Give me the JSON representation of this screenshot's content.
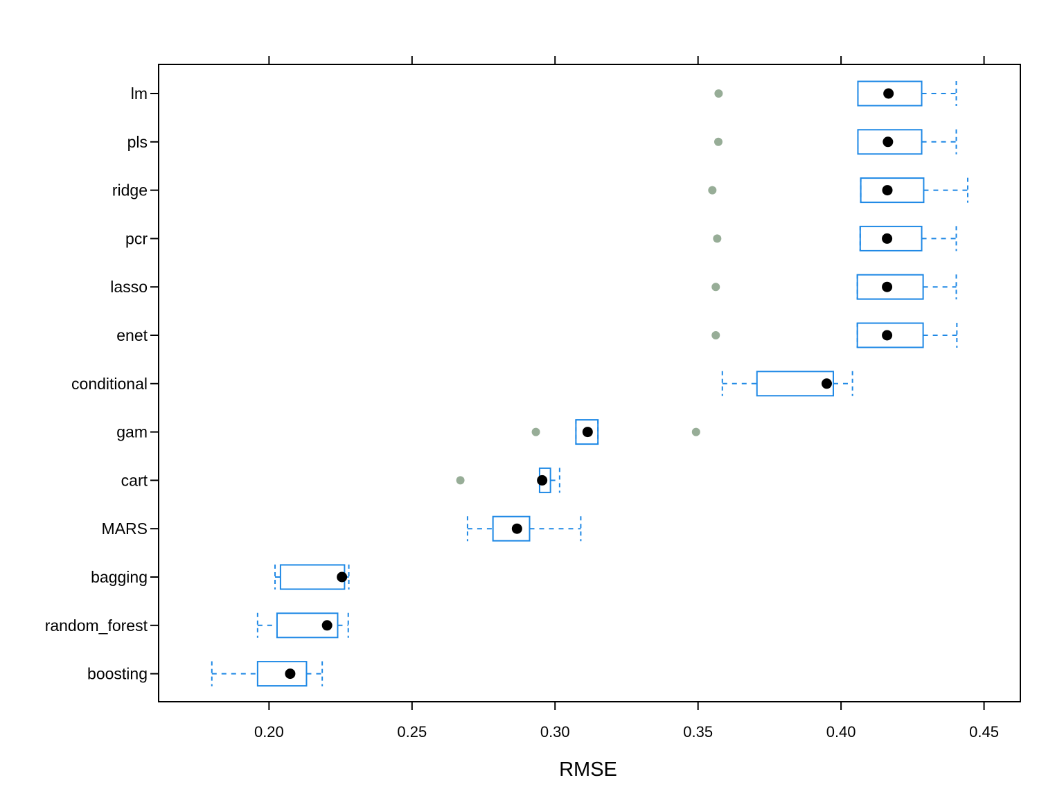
{
  "chart_data": {
    "type": "box",
    "title": "",
    "xlabel": "RMSE",
    "ylabel": "",
    "xlim": [
      0.1614,
      0.4627
    ],
    "x_ticks": [
      0.2,
      0.25,
      0.3,
      0.35,
      0.4,
      0.45
    ],
    "x_tick_labels": [
      "0.20",
      "0.25",
      "0.30",
      "0.35",
      "0.40",
      "0.45"
    ],
    "ticks_on_top_axis": true,
    "grid": false,
    "colors": {
      "box": "#1E88E5",
      "median": "#000000",
      "outlier": "#97AD97",
      "frame": "#000000"
    },
    "categories": [
      "lm",
      "pls",
      "ridge",
      "pcr",
      "lasso",
      "enet",
      "conditional",
      "gam",
      "cart",
      "MARS",
      "bagging",
      "random_forest",
      "boosting"
    ],
    "boxes": [
      {
        "label": "lm",
        "whisker_low": 0.4059,
        "q1": 0.4059,
        "median": 0.4166,
        "q3": 0.4282,
        "whisker_high": 0.4403,
        "outliers": [
          0.3572
        ]
      },
      {
        "label": "pls",
        "whisker_low": 0.4059,
        "q1": 0.4059,
        "median": 0.4164,
        "q3": 0.4282,
        "whisker_high": 0.4403,
        "outliers": [
          0.3571
        ]
      },
      {
        "label": "ridge",
        "whisker_low": 0.4069,
        "q1": 0.4069,
        "median": 0.4162,
        "q3": 0.4289,
        "whisker_high": 0.4443,
        "outliers": [
          0.355
        ]
      },
      {
        "label": "pcr",
        "whisker_low": 0.4067,
        "q1": 0.4067,
        "median": 0.4161,
        "q3": 0.4282,
        "whisker_high": 0.4403,
        "outliers": [
          0.3567
        ]
      },
      {
        "label": "lasso",
        "whisker_low": 0.4057,
        "q1": 0.4057,
        "median": 0.4161,
        "q3": 0.4287,
        "whisker_high": 0.4403,
        "outliers": [
          0.3562
        ]
      },
      {
        "label": "enet",
        "whisker_low": 0.4057,
        "q1": 0.4057,
        "median": 0.4161,
        "q3": 0.4287,
        "whisker_high": 0.4405,
        "outliers": [
          0.3562
        ]
      },
      {
        "label": "conditional",
        "whisker_low": 0.3585,
        "q1": 0.3706,
        "median": 0.395,
        "q3": 0.3973,
        "whisker_high": 0.404,
        "outliers": []
      },
      {
        "label": "gam",
        "whisker_low": 0.3073,
        "q1": 0.3073,
        "median": 0.3114,
        "q3": 0.315,
        "whisker_high": 0.315,
        "outliers": [
          0.2933,
          0.3493
        ]
      },
      {
        "label": "cart",
        "whisker_low": 0.2946,
        "q1": 0.2946,
        "median": 0.2955,
        "q3": 0.2984,
        "whisker_high": 0.3016,
        "outliers": [
          0.2669
        ]
      },
      {
        "label": "MARS",
        "whisker_low": 0.2694,
        "q1": 0.2783,
        "median": 0.2867,
        "q3": 0.2911,
        "whisker_high": 0.309,
        "outliers": []
      },
      {
        "label": "bagging",
        "whisker_low": 0.2021,
        "q1": 0.204,
        "median": 0.2255,
        "q3": 0.2264,
        "whisker_high": 0.2279,
        "outliers": []
      },
      {
        "label": "random_forest",
        "whisker_low": 0.196,
        "q1": 0.2028,
        "median": 0.2203,
        "q3": 0.224,
        "whisker_high": 0.2277,
        "outliers": []
      },
      {
        "label": "boosting",
        "whisker_low": 0.18,
        "q1": 0.196,
        "median": 0.2074,
        "q3": 0.2131,
        "whisker_high": 0.2186,
        "outliers": []
      }
    ]
  }
}
